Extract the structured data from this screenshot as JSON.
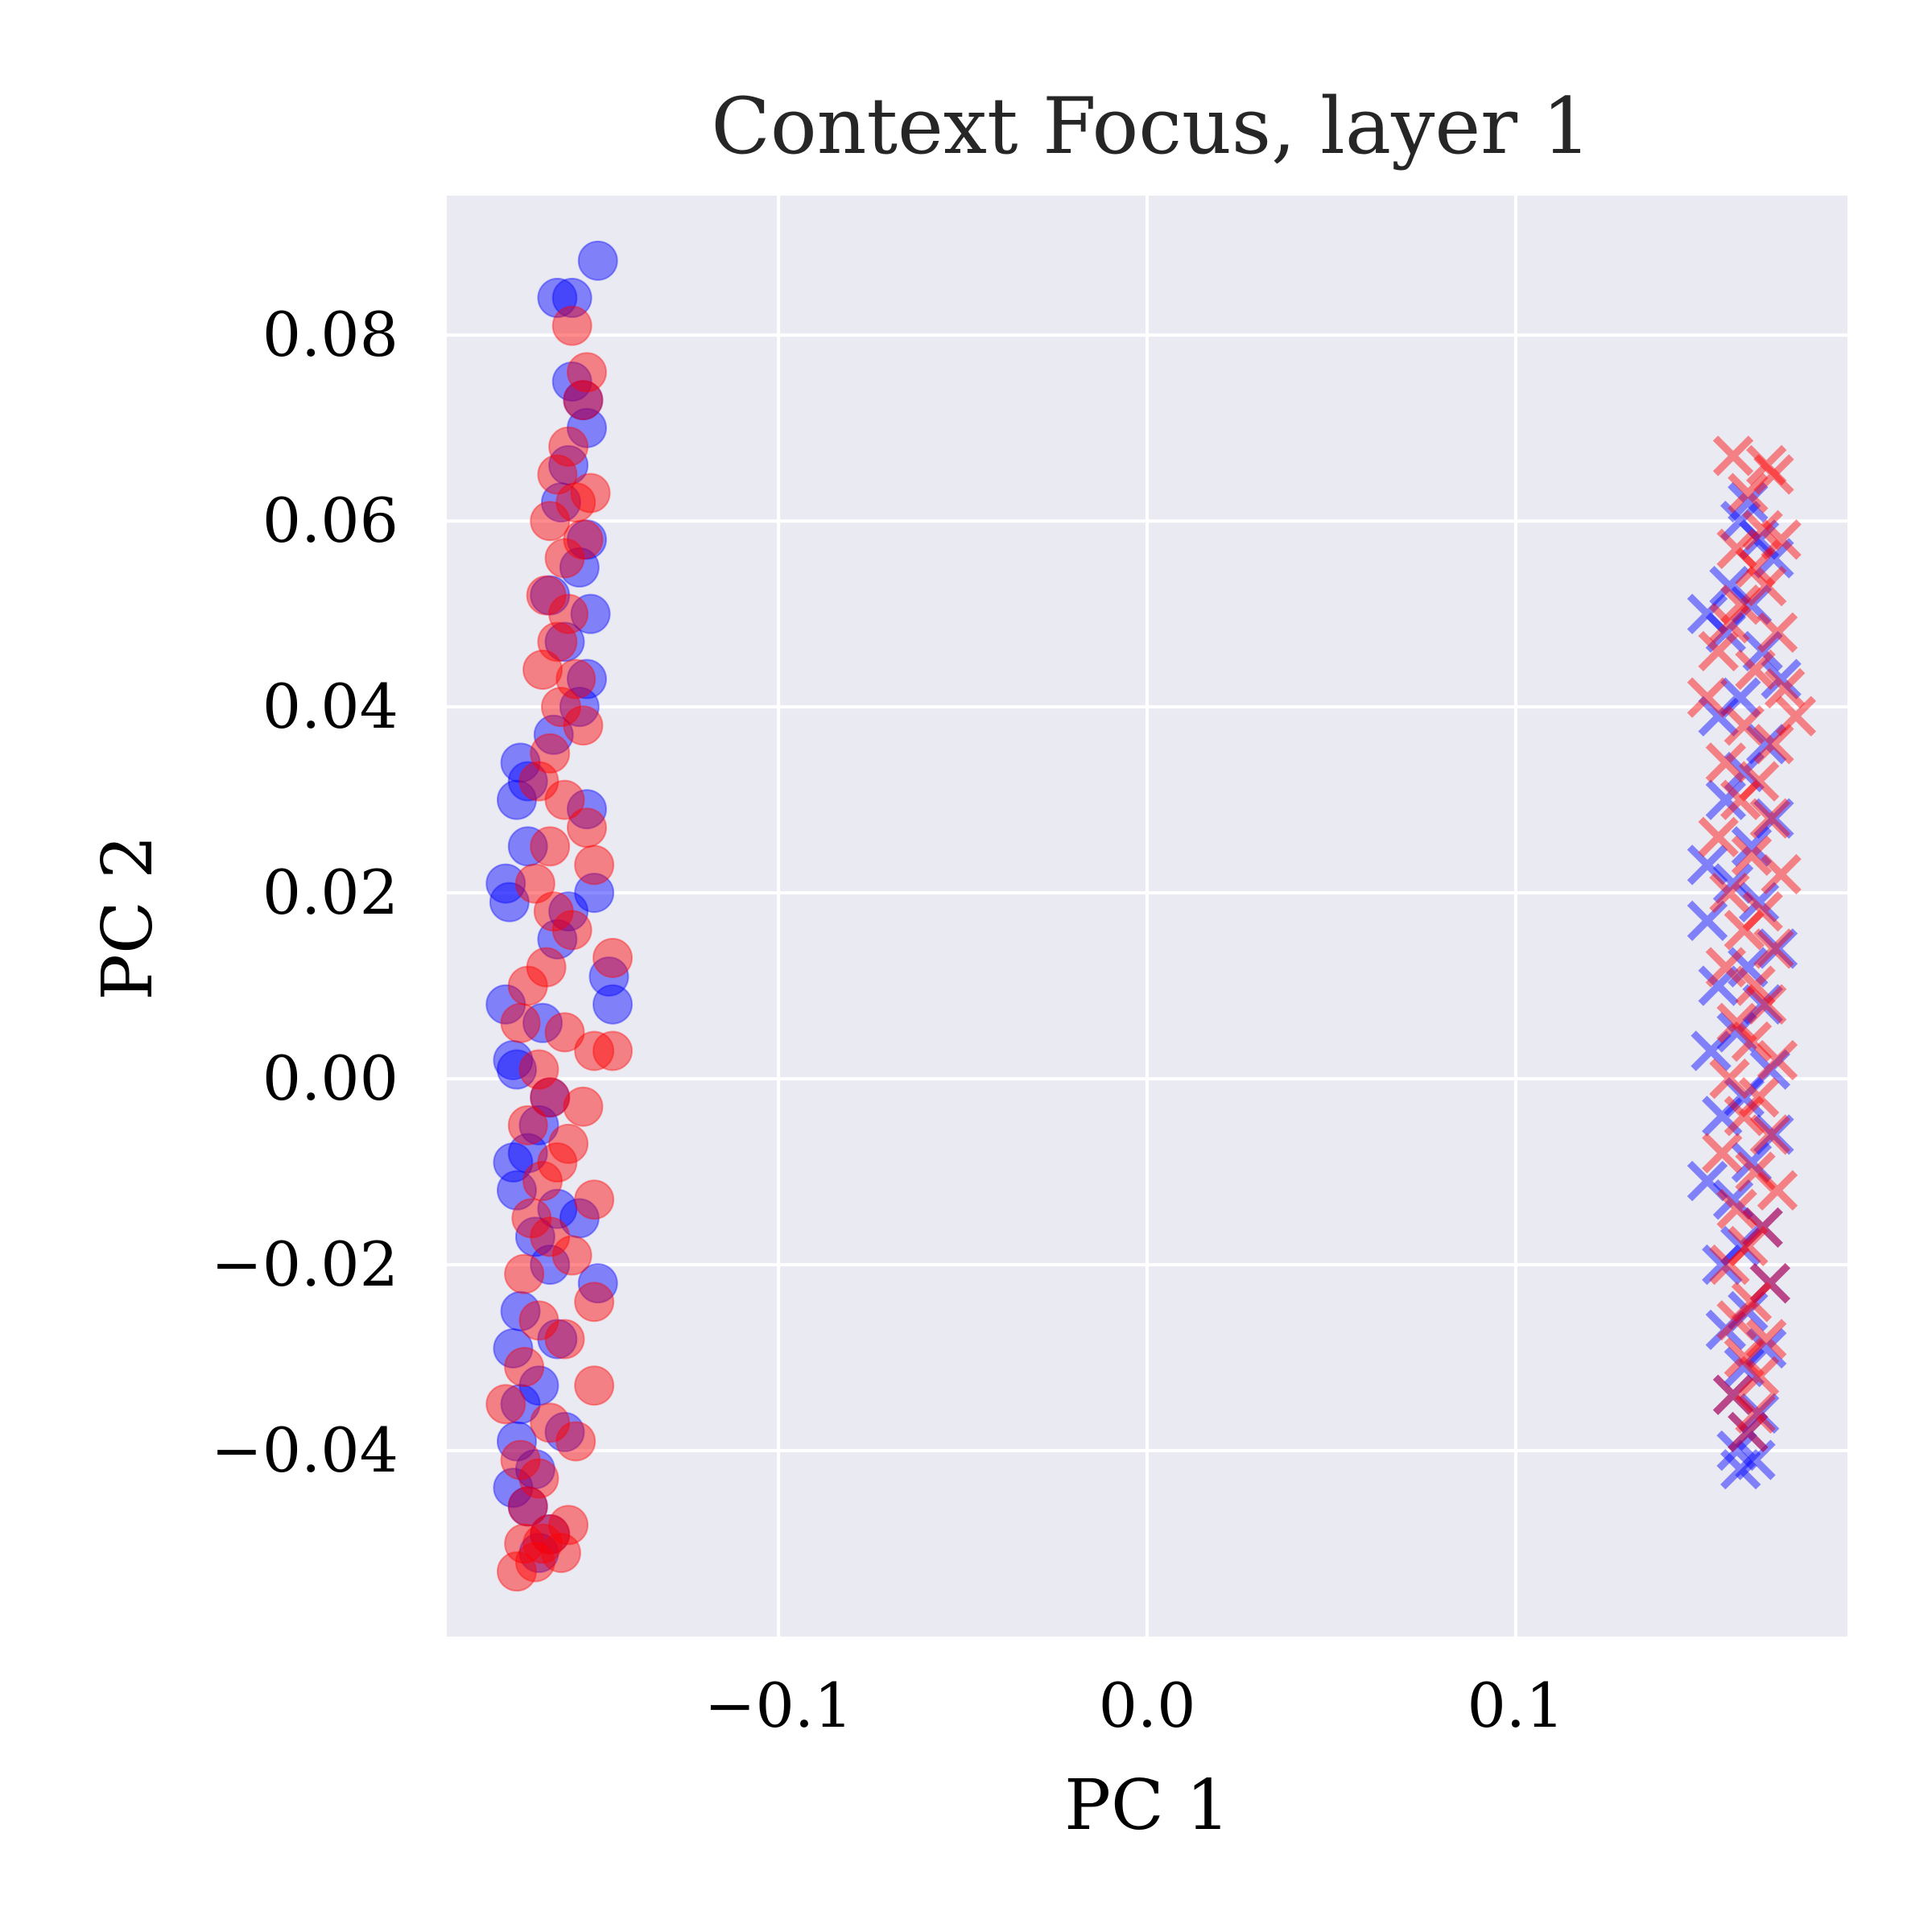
{
  "chart_data": {
    "type": "scatter",
    "title": "Context Focus, layer 1",
    "xlabel": "PC 1",
    "ylabel": "PC 2",
    "xlim": [
      -0.19,
      0.19
    ],
    "ylim": [
      -0.06,
      0.095
    ],
    "xticks": [
      {
        "value": -0.1,
        "label": "−0.1"
      },
      {
        "value": 0.0,
        "label": "0.0"
      },
      {
        "value": 0.1,
        "label": "0.1"
      }
    ],
    "yticks": [
      {
        "value": 0.08,
        "label": "0.08"
      },
      {
        "value": 0.06,
        "label": "0.06"
      },
      {
        "value": 0.04,
        "label": "0.04"
      },
      {
        "value": 0.02,
        "label": "0.02"
      },
      {
        "value": 0.0,
        "label": "0.00"
      },
      {
        "value": -0.02,
        "label": "−0.02"
      },
      {
        "value": -0.04,
        "label": "−0.04"
      }
    ],
    "grid": true,
    "background": "#eaeaf2",
    "grid_color": "#ffffff",
    "legend": "none",
    "series": [
      {
        "marker": "circle",
        "color": "#0000ff",
        "opacity": 0.45,
        "points": [
          [
            -0.149,
            0.088
          ],
          [
            -0.16,
            0.084
          ],
          [
            -0.156,
            0.084
          ],
          [
            -0.156,
            0.075
          ],
          [
            -0.153,
            0.073
          ],
          [
            -0.152,
            0.07
          ],
          [
            -0.157,
            0.066
          ],
          [
            -0.159,
            0.062
          ],
          [
            -0.152,
            0.058
          ],
          [
            -0.154,
            0.055
          ],
          [
            -0.162,
            0.052
          ],
          [
            -0.151,
            0.05
          ],
          [
            -0.158,
            0.047
          ],
          [
            -0.152,
            0.043
          ],
          [
            -0.154,
            0.04
          ],
          [
            -0.161,
            0.037
          ],
          [
            -0.17,
            0.034
          ],
          [
            -0.168,
            0.032
          ],
          [
            -0.171,
            0.03
          ],
          [
            -0.152,
            0.029
          ],
          [
            -0.168,
            0.025
          ],
          [
            -0.174,
            0.021
          ],
          [
            -0.173,
            0.019
          ],
          [
            -0.15,
            0.02
          ],
          [
            -0.157,
            0.018
          ],
          [
            -0.16,
            0.015
          ],
          [
            -0.146,
            0.011
          ],
          [
            -0.145,
            0.008
          ],
          [
            -0.174,
            0.008
          ],
          [
            -0.164,
            0.006
          ],
          [
            -0.172,
            0.002
          ],
          [
            -0.171,
            0.001
          ],
          [
            -0.162,
            -0.002
          ],
          [
            -0.165,
            -0.005
          ],
          [
            -0.168,
            -0.008
          ],
          [
            -0.172,
            -0.009
          ],
          [
            -0.171,
            -0.012
          ],
          [
            -0.16,
            -0.014
          ],
          [
            -0.154,
            -0.015
          ],
          [
            -0.166,
            -0.017
          ],
          [
            -0.162,
            -0.02
          ],
          [
            -0.149,
            -0.022
          ],
          [
            -0.17,
            -0.025
          ],
          [
            -0.16,
            -0.028
          ],
          [
            -0.172,
            -0.029
          ],
          [
            -0.165,
            -0.033
          ],
          [
            -0.17,
            -0.035
          ],
          [
            -0.158,
            -0.038
          ],
          [
            -0.171,
            -0.039
          ],
          [
            -0.166,
            -0.042
          ],
          [
            -0.172,
            -0.044
          ],
          [
            -0.168,
            -0.046
          ],
          [
            -0.162,
            -0.049
          ],
          [
            -0.165,
            -0.051
          ]
        ]
      },
      {
        "marker": "circle",
        "color": "#ff0000",
        "opacity": 0.45,
        "points": [
          [
            -0.156,
            0.081
          ],
          [
            -0.152,
            0.076
          ],
          [
            -0.153,
            0.073
          ],
          [
            -0.157,
            0.068
          ],
          [
            -0.16,
            0.065
          ],
          [
            -0.151,
            0.063
          ],
          [
            -0.155,
            0.062
          ],
          [
            -0.162,
            0.06
          ],
          [
            -0.153,
            0.058
          ],
          [
            -0.158,
            0.056
          ],
          [
            -0.163,
            0.052
          ],
          [
            -0.157,
            0.05
          ],
          [
            -0.16,
            0.047
          ],
          [
            -0.164,
            0.044
          ],
          [
            -0.155,
            0.043
          ],
          [
            -0.159,
            0.04
          ],
          [
            -0.153,
            0.038
          ],
          [
            -0.162,
            0.035
          ],
          [
            -0.165,
            0.032
          ],
          [
            -0.158,
            0.03
          ],
          [
            -0.152,
            0.027
          ],
          [
            -0.162,
            0.025
          ],
          [
            -0.15,
            0.023
          ],
          [
            -0.166,
            0.021
          ],
          [
            -0.161,
            0.018
          ],
          [
            -0.156,
            0.016
          ],
          [
            -0.145,
            0.013
          ],
          [
            -0.163,
            0.012
          ],
          [
            -0.168,
            0.01
          ],
          [
            -0.17,
            0.006
          ],
          [
            -0.158,
            0.005
          ],
          [
            -0.145,
            0.003
          ],
          [
            -0.15,
            0.003
          ],
          [
            -0.165,
            0.001
          ],
          [
            -0.162,
            -0.002
          ],
          [
            -0.153,
            -0.003
          ],
          [
            -0.168,
            -0.005
          ],
          [
            -0.157,
            -0.007
          ],
          [
            -0.16,
            -0.009
          ],
          [
            -0.164,
            -0.011
          ],
          [
            -0.15,
            -0.013
          ],
          [
            -0.167,
            -0.015
          ],
          [
            -0.162,
            -0.017
          ],
          [
            -0.156,
            -0.019
          ],
          [
            -0.169,
            -0.021
          ],
          [
            -0.15,
            -0.024
          ],
          [
            -0.165,
            -0.026
          ],
          [
            -0.158,
            -0.028
          ],
          [
            -0.169,
            -0.031
          ],
          [
            -0.15,
            -0.033
          ],
          [
            -0.174,
            -0.035
          ],
          [
            -0.162,
            -0.037
          ],
          [
            -0.155,
            -0.039
          ],
          [
            -0.17,
            -0.041
          ],
          [
            -0.165,
            -0.043
          ],
          [
            -0.168,
            -0.046
          ],
          [
            -0.157,
            -0.048
          ],
          [
            -0.164,
            -0.05
          ],
          [
            -0.159,
            -0.051
          ],
          [
            -0.166,
            -0.052
          ],
          [
            -0.171,
            -0.053
          ],
          [
            -0.162,
            -0.049
          ],
          [
            -0.169,
            -0.05
          ]
        ]
      },
      {
        "marker": "x",
        "color": "#0000ff",
        "opacity": 0.45,
        "points": [
          [
            0.163,
            0.062
          ],
          [
            0.161,
            0.06
          ],
          [
            0.166,
            0.058
          ],
          [
            0.17,
            0.056
          ],
          [
            0.158,
            0.053
          ],
          [
            0.164,
            0.051
          ],
          [
            0.152,
            0.05
          ],
          [
            0.157,
            0.048
          ],
          [
            0.167,
            0.046
          ],
          [
            0.172,
            0.043
          ],
          [
            0.161,
            0.041
          ],
          [
            0.155,
            0.039
          ],
          [
            0.168,
            0.036
          ],
          [
            0.162,
            0.033
          ],
          [
            0.157,
            0.03
          ],
          [
            0.17,
            0.028
          ],
          [
            0.164,
            0.025
          ],
          [
            0.152,
            0.023
          ],
          [
            0.159,
            0.021
          ],
          [
            0.166,
            0.019
          ],
          [
            0.152,
            0.017
          ],
          [
            0.171,
            0.014
          ],
          [
            0.163,
            0.012
          ],
          [
            0.155,
            0.01
          ],
          [
            0.167,
            0.008
          ],
          [
            0.16,
            0.005
          ],
          [
            0.153,
            0.003
          ],
          [
            0.169,
            0.001
          ],
          [
            0.162,
            -0.002
          ],
          [
            0.156,
            -0.004
          ],
          [
            0.17,
            -0.006
          ],
          [
            0.164,
            -0.009
          ],
          [
            0.152,
            -0.011
          ],
          [
            0.159,
            -0.013
          ],
          [
            0.167,
            -0.016
          ],
          [
            0.161,
            -0.018
          ],
          [
            0.156,
            -0.02
          ],
          [
            0.169,
            -0.022
          ],
          [
            0.163,
            -0.025
          ],
          [
            0.157,
            -0.027
          ],
          [
            0.168,
            -0.029
          ],
          [
            0.162,
            -0.031
          ],
          [
            0.159,
            -0.034
          ],
          [
            0.166,
            -0.036
          ],
          [
            0.163,
            -0.038
          ],
          [
            0.16,
            -0.04
          ],
          [
            0.165,
            -0.041
          ],
          [
            0.161,
            -0.042
          ]
        ]
      },
      {
        "marker": "x",
        "color": "#ff0000",
        "opacity": 0.45,
        "points": [
          [
            0.159,
            0.067
          ],
          [
            0.168,
            0.066
          ],
          [
            0.17,
            0.065
          ],
          [
            0.163,
            0.063
          ],
          [
            0.167,
            0.059
          ],
          [
            0.172,
            0.058
          ],
          [
            0.16,
            0.057
          ],
          [
            0.165,
            0.055
          ],
          [
            0.168,
            0.053
          ],
          [
            0.161,
            0.051
          ],
          [
            0.158,
            0.049
          ],
          [
            0.171,
            0.048
          ],
          [
            0.155,
            0.046
          ],
          [
            0.165,
            0.044
          ],
          [
            0.173,
            0.042
          ],
          [
            0.152,
            0.041
          ],
          [
            0.176,
            0.039
          ],
          [
            0.162,
            0.038
          ],
          [
            0.17,
            0.036
          ],
          [
            0.157,
            0.034
          ],
          [
            0.166,
            0.032
          ],
          [
            0.161,
            0.03
          ],
          [
            0.169,
            0.028
          ],
          [
            0.155,
            0.026
          ],
          [
            0.164,
            0.024
          ],
          [
            0.172,
            0.022
          ],
          [
            0.158,
            0.02
          ],
          [
            0.167,
            0.018
          ],
          [
            0.162,
            0.016
          ],
          [
            0.17,
            0.014
          ],
          [
            0.157,
            0.012
          ],
          [
            0.165,
            0.01
          ],
          [
            0.168,
            0.008
          ],
          [
            0.16,
            0.006
          ],
          [
            0.164,
            0.004
          ],
          [
            0.171,
            0.002
          ],
          [
            0.158,
            0.0
          ],
          [
            0.166,
            -0.002
          ],
          [
            0.162,
            -0.004
          ],
          [
            0.169,
            -0.006
          ],
          [
            0.156,
            -0.008
          ],
          [
            0.165,
            -0.01
          ],
          [
            0.171,
            -0.012
          ],
          [
            0.16,
            -0.014
          ],
          [
            0.167,
            -0.016
          ],
          [
            0.163,
            -0.018
          ],
          [
            0.158,
            -0.02
          ],
          [
            0.169,
            -0.022
          ],
          [
            0.164,
            -0.024
          ],
          [
            0.16,
            -0.026
          ],
          [
            0.168,
            -0.028
          ],
          [
            0.162,
            -0.03
          ],
          [
            0.166,
            -0.032
          ],
          [
            0.159,
            -0.034
          ],
          [
            0.165,
            -0.036
          ],
          [
            0.163,
            -0.038
          ]
        ]
      }
    ]
  }
}
